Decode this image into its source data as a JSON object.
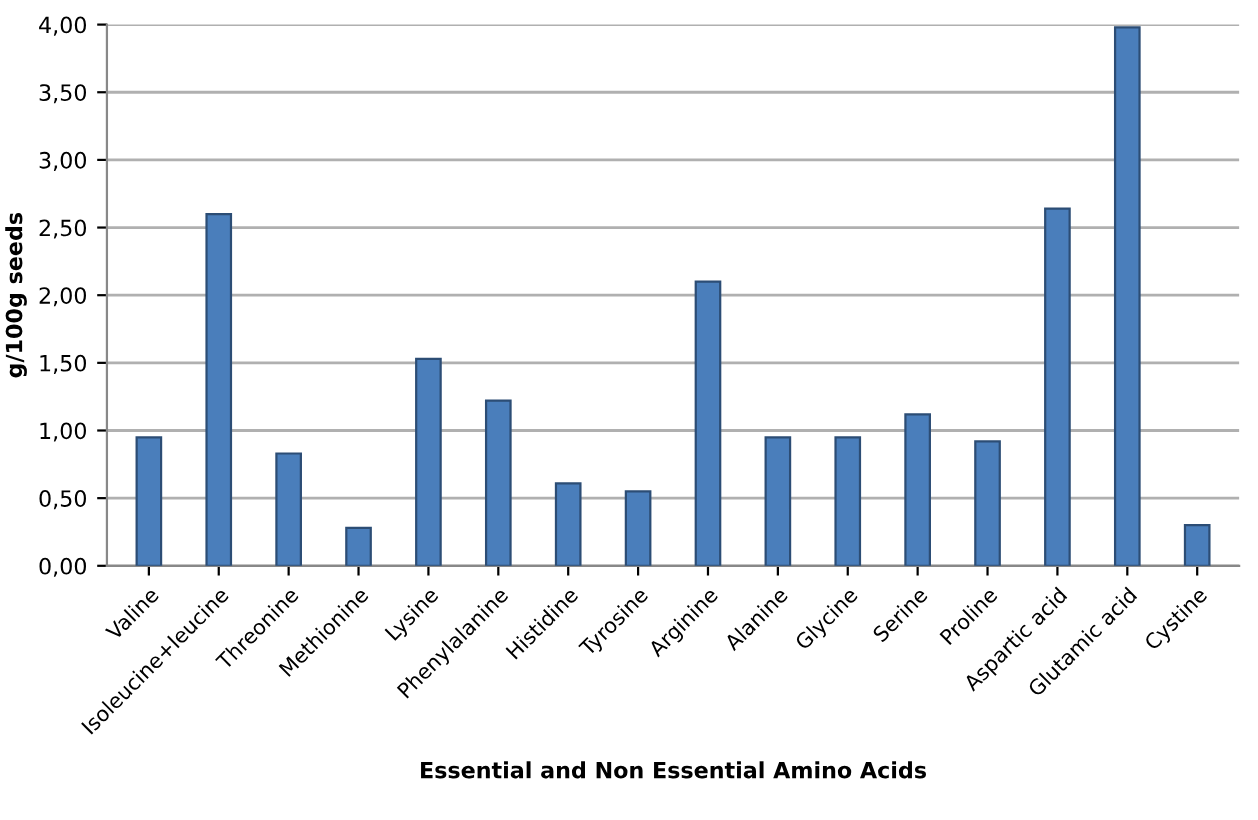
{
  "chart_data": {
    "type": "bar",
    "xlabel": "Essential and Non Essential Amino Acids",
    "ylabel": "g/100g seeds",
    "categories": [
      "Valine",
      "Isoleucine+leucine",
      "Threonine",
      "Methionine",
      "Lysine",
      "Phenylalanine",
      "Histidine",
      "Tyrosine",
      "Arginine",
      "Alanine",
      "Glycine",
      "Serine",
      "Proline",
      "Aspartic acid",
      "Glutamic acid",
      "Cystine"
    ],
    "values": [
      0.95,
      2.6,
      0.83,
      0.28,
      1.53,
      1.22,
      0.61,
      0.55,
      2.1,
      0.95,
      0.95,
      1.12,
      0.92,
      2.64,
      3.98,
      0.3
    ],
    "color": "#4a7ebb",
    "ylim": [
      0,
      4
    ],
    "yticks": [
      {
        "value": 0,
        "label": "0,00"
      },
      {
        "value": 0.5,
        "label": "0,50"
      },
      {
        "value": 1,
        "label": "1,00"
      },
      {
        "value": 1.5,
        "label": "1,50"
      },
      {
        "value": 2,
        "label": "2,00"
      },
      {
        "value": 2.5,
        "label": "2,50"
      },
      {
        "value": 3,
        "label": "3,00"
      },
      {
        "value": 3.5,
        "label": "3,50"
      },
      {
        "value": 4,
        "label": "4,00"
      }
    ],
    "grid": "y"
  }
}
